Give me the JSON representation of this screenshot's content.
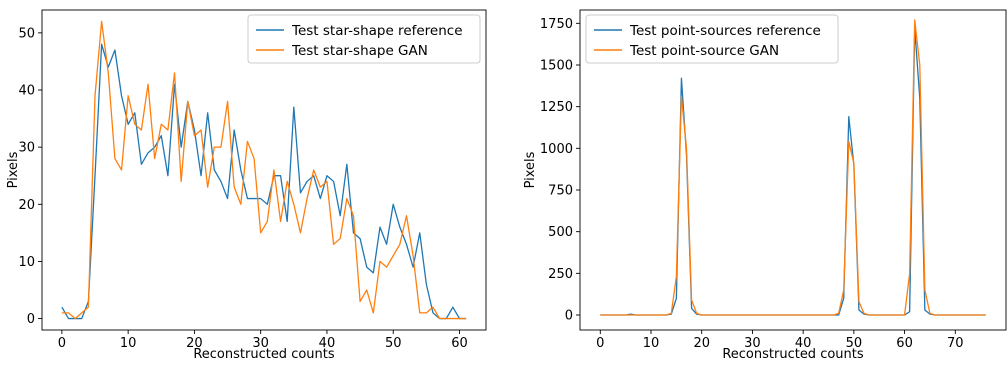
{
  "chart_data": [
    {
      "type": "line",
      "title": "",
      "xlabel": "Reconstructed counts",
      "ylabel": "Pixels",
      "xlim": [
        -3,
        64
      ],
      "ylim": [
        -2,
        54
      ],
      "xticks": [
        0,
        10,
        20,
        30,
        40,
        50,
        60
      ],
      "yticks": [
        0,
        10,
        20,
        30,
        40,
        50
      ],
      "grid": false,
      "legend_position": "top-right",
      "series": [
        {
          "name": "Test star-shape reference",
          "color": "#1f77b4",
          "x": [
            0,
            1,
            2,
            3,
            4,
            5,
            6,
            7,
            8,
            9,
            10,
            11,
            12,
            13,
            14,
            15,
            16,
            17,
            18,
            19,
            20,
            21,
            22,
            23,
            24,
            25,
            26,
            27,
            28,
            29,
            30,
            31,
            32,
            33,
            34,
            35,
            36,
            37,
            38,
            39,
            40,
            41,
            42,
            43,
            44,
            45,
            46,
            47,
            48,
            49,
            50,
            51,
            52,
            53,
            54,
            55,
            56,
            57,
            58,
            59,
            60,
            61
          ],
          "values": [
            2,
            0,
            0,
            0,
            3,
            25,
            48,
            44,
            47,
            39,
            34,
            36,
            27,
            29,
            30,
            32,
            25,
            41,
            30,
            38,
            33,
            25,
            36,
            26,
            24,
            21,
            33,
            26,
            21,
            21,
            21,
            20,
            25,
            25,
            17,
            37,
            22,
            24,
            25,
            21,
            25,
            24,
            18,
            27,
            15,
            14,
            9,
            8,
            16,
            13,
            20,
            16,
            13,
            9,
            15,
            6,
            1,
            0,
            0,
            2,
            0,
            0
          ]
        },
        {
          "name": "Test star-shape GAN",
          "color": "#ff7f0e",
          "x": [
            0,
            1,
            2,
            3,
            4,
            5,
            6,
            7,
            8,
            9,
            10,
            11,
            12,
            13,
            14,
            15,
            16,
            17,
            18,
            19,
            20,
            21,
            22,
            23,
            24,
            25,
            26,
            27,
            28,
            29,
            30,
            31,
            32,
            33,
            34,
            35,
            36,
            37,
            38,
            39,
            40,
            41,
            42,
            43,
            44,
            45,
            46,
            47,
            48,
            49,
            50,
            51,
            52,
            53,
            54,
            55,
            56,
            57,
            58,
            59,
            60,
            61
          ],
          "values": [
            1,
            1,
            0,
            1,
            2,
            39,
            52,
            43,
            28,
            26,
            39,
            34,
            33,
            41,
            28,
            34,
            33,
            43,
            24,
            38,
            32,
            33,
            23,
            30,
            30,
            38,
            23,
            20,
            31,
            28,
            15,
            17,
            26,
            17,
            24,
            20,
            15,
            21,
            26,
            23,
            24,
            13,
            14,
            21,
            18,
            3,
            5,
            1,
            10,
            9,
            11,
            13,
            18,
            11,
            1,
            1,
            2,
            0,
            0,
            0,
            0,
            0
          ]
        }
      ]
    },
    {
      "type": "line",
      "title": "",
      "xlabel": "Reconstructed counts",
      "ylabel": "Pixels",
      "xlim": [
        -4,
        80
      ],
      "ylim": [
        -90,
        1830
      ],
      "xticks": [
        0,
        10,
        20,
        30,
        40,
        50,
        60,
        70
      ],
      "yticks": [
        0,
        250,
        500,
        750,
        1000,
        1250,
        1500,
        1750
      ],
      "grid": false,
      "legend_position": "top-left",
      "series": [
        {
          "name": "Test point-sources reference",
          "color": "#1f77b4",
          "x": [
            0,
            1,
            2,
            3,
            4,
            5,
            6,
            7,
            8,
            9,
            10,
            11,
            12,
            13,
            14,
            15,
            16,
            17,
            18,
            19,
            20,
            21,
            22,
            23,
            24,
            25,
            26,
            27,
            28,
            29,
            30,
            31,
            32,
            33,
            34,
            35,
            36,
            37,
            38,
            39,
            40,
            41,
            42,
            43,
            44,
            45,
            46,
            47,
            48,
            49,
            50,
            51,
            52,
            53,
            54,
            55,
            56,
            57,
            58,
            59,
            60,
            61,
            62,
            63,
            64,
            65,
            66,
            67,
            68,
            69,
            70,
            71,
            72,
            73,
            74,
            75,
            76
          ],
          "values": [
            0,
            0,
            0,
            0,
            0,
            0,
            5,
            0,
            0,
            0,
            0,
            0,
            0,
            0,
            5,
            100,
            1420,
            960,
            40,
            5,
            0,
            0,
            0,
            0,
            0,
            0,
            0,
            0,
            0,
            0,
            0,
            0,
            0,
            0,
            0,
            0,
            0,
            0,
            0,
            0,
            0,
            0,
            0,
            0,
            0,
            0,
            0,
            0,
            100,
            1190,
            900,
            30,
            5,
            0,
            0,
            0,
            0,
            0,
            0,
            0,
            0,
            20,
            1720,
            1300,
            30,
            5,
            0,
            0,
            0,
            0,
            0,
            0,
            0,
            0,
            0,
            0,
            0
          ]
        },
        {
          "name": "Test point-source GAN",
          "color": "#ff7f0e",
          "x": [
            0,
            1,
            2,
            3,
            4,
            5,
            6,
            7,
            8,
            9,
            10,
            11,
            12,
            13,
            14,
            15,
            16,
            17,
            18,
            19,
            20,
            21,
            22,
            23,
            24,
            25,
            26,
            27,
            28,
            29,
            30,
            31,
            32,
            33,
            34,
            35,
            36,
            37,
            38,
            39,
            40,
            41,
            42,
            43,
            44,
            45,
            46,
            47,
            48,
            49,
            50,
            51,
            52,
            53,
            54,
            55,
            56,
            57,
            58,
            59,
            60,
            61,
            62,
            63,
            64,
            65,
            66,
            67,
            68,
            69,
            70,
            71,
            72,
            73,
            74,
            75,
            76
          ],
          "values": [
            0,
            0,
            0,
            0,
            0,
            0,
            0,
            0,
            0,
            0,
            0,
            0,
            0,
            0,
            10,
            230,
            1310,
            1000,
            90,
            10,
            0,
            0,
            0,
            0,
            0,
            0,
            0,
            0,
            0,
            0,
            0,
            0,
            0,
            0,
            0,
            0,
            0,
            0,
            0,
            0,
            0,
            0,
            0,
            0,
            0,
            0,
            0,
            10,
            150,
            1040,
            910,
            80,
            10,
            0,
            0,
            0,
            0,
            0,
            0,
            0,
            0,
            250,
            1770,
            1500,
            150,
            10,
            0,
            0,
            0,
            0,
            0,
            0,
            0,
            0,
            0,
            0,
            0
          ]
        }
      ]
    }
  ]
}
